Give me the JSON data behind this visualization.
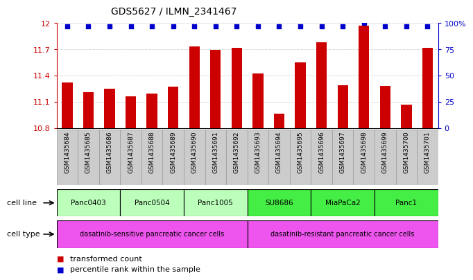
{
  "title": "GDS5627 / ILMN_2341467",
  "samples": [
    "GSM1435684",
    "GSM1435685",
    "GSM1435686",
    "GSM1435687",
    "GSM1435688",
    "GSM1435689",
    "GSM1435690",
    "GSM1435691",
    "GSM1435692",
    "GSM1435693",
    "GSM1435694",
    "GSM1435695",
    "GSM1435696",
    "GSM1435697",
    "GSM1435698",
    "GSM1435699",
    "GSM1435700",
    "GSM1435701"
  ],
  "bar_values": [
    11.32,
    11.21,
    11.25,
    11.16,
    11.19,
    11.27,
    11.73,
    11.69,
    11.72,
    11.42,
    10.96,
    11.55,
    11.78,
    11.29,
    11.97,
    11.28,
    11.07,
    11.72
  ],
  "percentile_values": [
    97,
    97,
    97,
    97,
    97,
    97,
    97,
    97,
    97,
    97,
    97,
    97,
    97,
    97,
    100,
    97,
    97,
    97
  ],
  "bar_color": "#cc0000",
  "percentile_color": "#0000cc",
  "ylim_left": [
    10.8,
    12.0
  ],
  "yticks_left": [
    10.8,
    11.1,
    11.4,
    11.7,
    12.0
  ],
  "ytick_labels_left": [
    "10.8",
    "11.1",
    "11.4",
    "11.7",
    "12"
  ],
  "ytick_labels_right": [
    "0",
    "25",
    "50",
    "75",
    "100%"
  ],
  "cell_lines": [
    {
      "name": "Panc0403",
      "start": 0,
      "end": 3,
      "color": "#bbffbb"
    },
    {
      "name": "Panc0504",
      "start": 3,
      "end": 6,
      "color": "#bbffbb"
    },
    {
      "name": "Panc1005",
      "start": 6,
      "end": 9,
      "color": "#bbffbb"
    },
    {
      "name": "SU8686",
      "start": 9,
      "end": 12,
      "color": "#44ee44"
    },
    {
      "name": "MiaPaCa2",
      "start": 12,
      "end": 15,
      "color": "#44ee44"
    },
    {
      "name": "Panc1",
      "start": 15,
      "end": 18,
      "color": "#44ee44"
    }
  ],
  "cell_types": [
    {
      "name": "dasatinib-sensitive pancreatic cancer cells",
      "start": 0,
      "end": 9,
      "color": "#ee55ee"
    },
    {
      "name": "dasatinib-resistant pancreatic cancer cells",
      "start": 9,
      "end": 18,
      "color": "#ee55ee"
    }
  ],
  "legend_bar_label": "transformed count",
  "legend_pct_label": "percentile rank within the sample",
  "background_color": "#ffffff",
  "sample_label_bg": "#cccccc",
  "cell_line_label": "cell line",
  "cell_type_label": "cell type"
}
